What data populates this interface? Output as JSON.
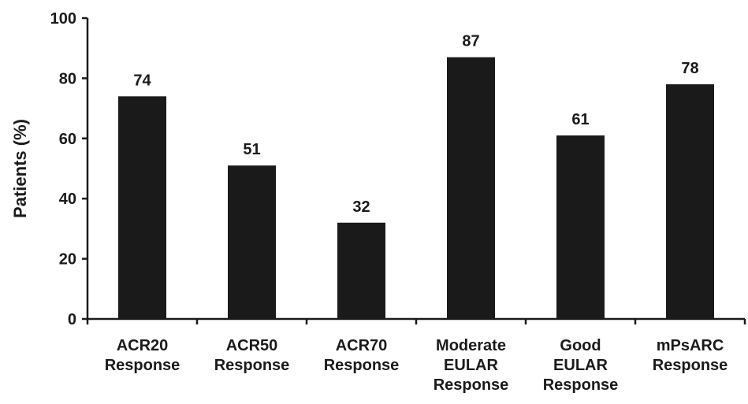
{
  "chart_data": {
    "type": "bar",
    "categories": [
      [
        "ACR20",
        "Response"
      ],
      [
        "ACR50",
        "Response"
      ],
      [
        "ACR70",
        "Response"
      ],
      [
        "Moderate",
        "EULAR",
        "Response"
      ],
      [
        "Good",
        "EULAR",
        "Response"
      ],
      [
        "mPsARC",
        "Response"
      ]
    ],
    "values": [
      74,
      51,
      32,
      87,
      61,
      78
    ],
    "data_labels": [
      "74",
      "51",
      "32",
      "87",
      "61",
      "78"
    ],
    "title": "",
    "xlabel": "",
    "ylabel": "Patients (%)",
    "ylim": [
      0,
      100
    ],
    "yticks": [
      0,
      20,
      40,
      60,
      80,
      100
    ],
    "grid": false,
    "legend": "none",
    "colors": {
      "bar": "#1a1a1a",
      "axis": "#1a1a1a",
      "background": "#ffffff"
    }
  }
}
